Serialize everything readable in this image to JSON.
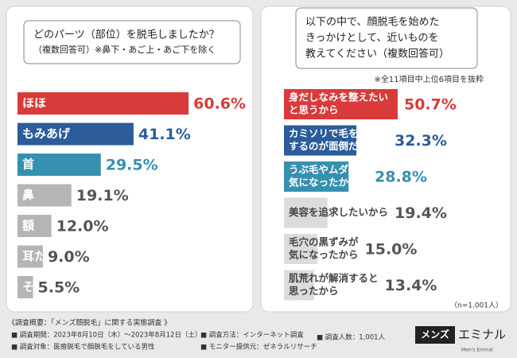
{
  "chart_data": [
    {
      "type": "bar",
      "title": "どのパーツ（部位）を脱毛しましたか？",
      "subtitle": "（複数回答可）※鼻下・あご上・あご下を除く",
      "categories": [
        [
          "ほほ"
        ],
        [
          "もみあげ"
        ],
        [
          "首"
        ],
        [
          "鼻"
        ],
        [
          "額"
        ],
        [
          "耳たぶ"
        ],
        [
          "その他"
        ]
      ],
      "values": [
        60.6,
        41.1,
        29.5,
        19.1,
        12.0,
        9.0,
        5.5
      ],
      "value_labels": [
        "60.6%",
        "41.1%",
        "29.5%",
        "19.1%",
        "12.0%",
        "9.0%",
        "5.5%"
      ],
      "colors": [
        "#d93a3a",
        "#2c5c99",
        "#3690b0",
        "#b5b5b5",
        "#b5b5b5",
        "#b5b5b5",
        "#b5b5b5"
      ],
      "label_colors": [
        "#ffffff",
        "#ffffff",
        "#ffffff",
        "#ffffff",
        "#ffffff",
        "#ffffff",
        "#ffffff"
      ],
      "value_colors": [
        "#d93a3a",
        "#2c5c99",
        "#3690b0",
        "#555555",
        "#555555",
        "#555555",
        "#555555"
      ]
    },
    {
      "type": "bar",
      "title": [
        "以下の中で、顔脱毛を始めた",
        "きっかけとして、近いものを",
        "教えてください（複数回答可）"
      ],
      "note": "※全11項目中上位6項目を抜粋",
      "categories": [
        [
          "身だしなみを整えたい",
          "と思うから"
        ],
        [
          "カミソリで毛を処理を",
          "するのが面倒だから"
        ],
        [
          "うぶ毛やムダ毛が",
          "気になったから"
        ],
        [
          "美容を追求したいから"
        ],
        [
          "毛穴の黒ずみが",
          "気になったから"
        ],
        [
          "肌荒れが解消すると",
          "思ったから"
        ]
      ],
      "values": [
        50.7,
        32.3,
        28.8,
        19.4,
        15.0,
        13.4
      ],
      "value_labels": [
        "50.7%",
        "32.3%",
        "28.8%",
        "19.4%",
        "15.0%",
        "13.4%"
      ],
      "colors": [
        "#d93a3a",
        "#2c5c99",
        "#3690b0",
        "#dcdcdc",
        "#dcdcdc",
        "#dcdcdc"
      ],
      "label_colors": [
        "#ffffff",
        "#ffffff",
        "#ffffff",
        "#444444",
        "#444444",
        "#444444"
      ],
      "value_colors": [
        "#d93a3a",
        "#2c5c99",
        "#3690b0",
        "#555555",
        "#555555",
        "#555555"
      ],
      "footer": "（n=1,001人）"
    }
  ],
  "survey": {
    "heading": "《調査概要：「メンズ顔脱毛」に関する実態調査 》",
    "items": [
      "■ 調査期間：2023年8月10日（木）～2023年8月12日（土）",
      "■ 調査対象：医療脱毛で顔脱毛をしている男性",
      "■ 調査方法：インターネット調査",
      "■ モニター提供元：ゼネラルリサーチ",
      "■ 調査人数：1,001人"
    ]
  },
  "logo": {
    "main": "メンズ",
    "sub": "エミナル",
    "tagline": "Men's Eminal"
  }
}
